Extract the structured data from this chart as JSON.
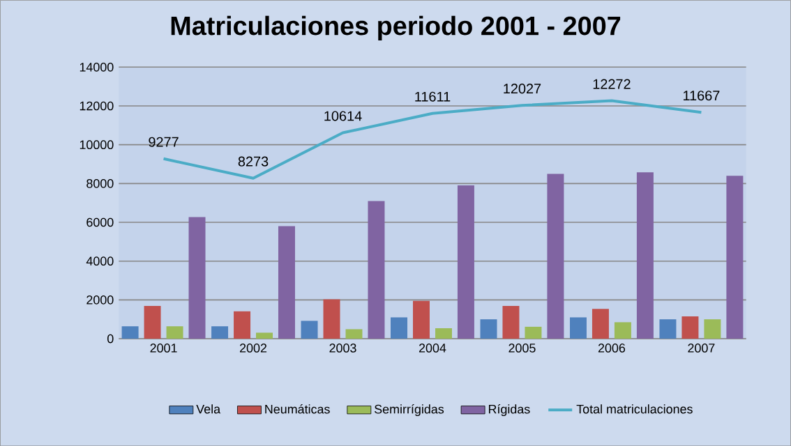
{
  "chart_data": {
    "type": "bar",
    "title": "Matriculaciones periodo 2001 - 2007",
    "categories": [
      "2001",
      "2002",
      "2003",
      "2004",
      "2005",
      "2006",
      "2007"
    ],
    "series": [
      {
        "name": "Vela",
        "color": "#4f81bd",
        "values": [
          640,
          640,
          920,
          1100,
          1000,
          1100,
          1000
        ]
      },
      {
        "name": "Neumáticas",
        "color": "#c0504d",
        "values": [
          1690,
          1410,
          2030,
          1950,
          1690,
          1540,
          1150
        ]
      },
      {
        "name": "Semirrígidas",
        "color": "#9bbb59",
        "values": [
          640,
          310,
          490,
          540,
          615,
          850,
          1000
        ]
      },
      {
        "name": "Rígidas",
        "color": "#8064a2",
        "values": [
          6270,
          5800,
          7100,
          7900,
          8500,
          8580,
          8400
        ]
      },
      {
        "name": "Total matriculaciones",
        "type": "line",
        "color": "#4bacc6",
        "values": [
          9277,
          8273,
          10614,
          11611,
          12027,
          12272,
          11667
        ],
        "value_labels": [
          "9277",
          "8273",
          "10614",
          "11611",
          "12027",
          "12272",
          "11667"
        ]
      }
    ],
    "ylim": [
      0,
      14000
    ],
    "yticks": [
      0,
      2000,
      4000,
      6000,
      8000,
      10000,
      12000,
      14000
    ],
    "grid": "y",
    "legend": "bottom",
    "marker": "none"
  }
}
